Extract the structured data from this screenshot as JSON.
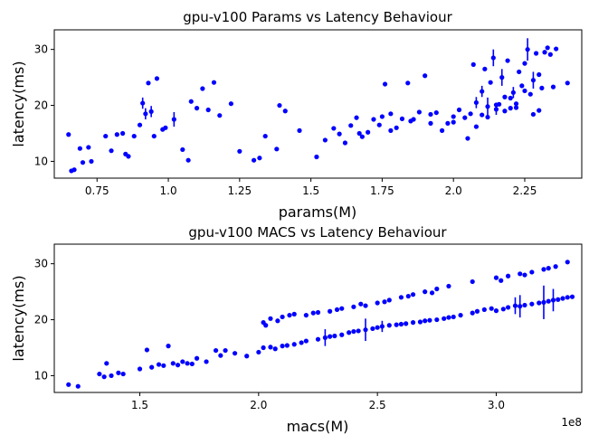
{
  "chart_data": [
    {
      "type": "scatter",
      "title": "gpu-v100 Params vs Latency Behaviour",
      "xlabel": "params(M)",
      "ylabel": "latency(ms)",
      "xlim": [
        0.6,
        2.45
      ],
      "ylim": [
        7,
        33.5
      ],
      "xticks": [
        0.75,
        1.0,
        1.25,
        1.5,
        1.75,
        2.0,
        2.25
      ],
      "xtick_labels": [
        "0.75",
        "1.0",
        "1.25",
        "1.5",
        "1.75",
        "2.0",
        "2.25"
      ],
      "yticks": [
        10,
        20,
        30
      ],
      "ytick_labels": [
        "10",
        "20",
        "30"
      ],
      "color": "#0000ff",
      "grid": false,
      "series": [
        {
          "x": [
            0.65,
            0.66,
            0.67,
            0.69,
            0.7,
            0.72,
            0.73,
            0.78,
            0.8,
            0.82,
            0.84,
            0.85,
            0.86,
            0.88,
            0.9,
            0.91,
            0.92,
            0.93,
            0.94,
            0.95,
            0.96,
            0.98,
            0.99,
            1.02,
            1.05,
            1.07,
            1.08,
            1.1,
            1.12,
            1.14,
            1.16,
            1.18,
            1.22,
            1.25,
            1.3,
            1.32,
            1.34,
            1.38,
            1.39,
            1.41,
            1.46,
            1.52,
            1.55,
            1.58,
            1.6,
            1.62,
            1.64,
            1.66,
            1.67,
            1.68,
            1.7,
            1.72,
            1.74,
            1.75,
            1.76,
            1.78,
            1.8,
            1.82,
            1.84,
            1.86,
            1.88,
            1.9,
            1.92,
            1.94,
            1.96,
            1.98,
            2.0,
            2.02,
            2.04,
            2.06,
            2.07,
            2.08,
            2.1,
            2.11,
            2.12,
            2.13,
            2.14,
            2.15,
            2.16,
            2.17,
            2.18,
            2.19,
            2.2,
            2.21,
            2.22,
            2.23,
            2.24,
            2.25,
            2.26,
            2.27,
            2.28,
            2.29,
            2.3,
            2.31,
            2.32,
            2.33,
            2.34,
            2.35,
            2.36,
            2.4,
            2.1,
            2.15,
            2.2,
            2.25,
            2.3,
            2.08,
            2.12,
            2.18,
            2.22,
            2.28,
            1.78,
            1.85,
            1.92,
            2.0,
            2.05
          ],
          "y": [
            14.8,
            8.3,
            8.5,
            12.3,
            9.8,
            12.5,
            10.0,
            14.5,
            11.9,
            14.8,
            15.0,
            11.3,
            10.9,
            14.5,
            16.5,
            20.4,
            18.5,
            24.0,
            18.9,
            14.5,
            24.8,
            15.7,
            16.0,
            17.5,
            12.1,
            10.2,
            20.7,
            19.5,
            23.0,
            19.2,
            24.1,
            18.2,
            20.3,
            11.8,
            10.2,
            10.6,
            14.5,
            12.2,
            20.0,
            19.0,
            15.5,
            10.8,
            13.8,
            15.9,
            14.9,
            13.3,
            16.4,
            17.8,
            15.0,
            14.4,
            15.2,
            17.5,
            16.5,
            18.0,
            23.8,
            18.5,
            16.0,
            17.6,
            24.0,
            17.5,
            18.8,
            25.3,
            18.4,
            18.7,
            15.5,
            16.8,
            17.0,
            19.2,
            17.8,
            18.5,
            27.3,
            20.5,
            22.5,
            26.5,
            19.8,
            24.1,
            28.5,
            19.3,
            20.2,
            25.0,
            21.5,
            28.0,
            19.5,
            22.3,
            19.6,
            26.0,
            23.5,
            27.5,
            30.0,
            22.0,
            24.5,
            29.3,
            25.5,
            23.1,
            29.5,
            30.3,
            29.1,
            23.3,
            30.1,
            24.0,
            18.3,
            20.1,
            21.3,
            22.6,
            19.1,
            16.2,
            17.9,
            19.0,
            20.3,
            18.4,
            15.5,
            17.2,
            16.8,
            18.0,
            14.1
          ],
          "err": [
            0,
            0,
            0,
            0,
            0,
            0,
            0,
            0,
            0,
            0,
            0,
            0,
            0,
            0,
            0,
            1.0,
            1.0,
            0,
            1.0,
            0,
            0,
            0,
            0,
            1.3,
            0,
            0,
            0,
            0,
            0,
            0,
            0,
            0,
            0,
            0,
            0,
            0,
            0,
            0,
            0,
            0,
            0,
            0,
            0,
            0,
            0,
            0,
            0,
            0,
            0,
            0,
            0,
            0,
            0,
            0,
            0,
            0,
            0,
            0,
            0,
            0,
            0,
            0,
            0,
            0,
            0,
            0,
            0,
            0,
            0,
            0,
            0,
            1.0,
            1.0,
            0,
            1.6,
            0,
            1.5,
            1.0,
            0,
            1.5,
            0,
            0,
            0,
            1.0,
            0,
            0,
            0,
            0,
            2.0,
            0,
            1.5,
            0,
            0,
            0,
            0,
            0,
            0,
            0,
            0,
            0,
            0,
            0,
            0,
            0,
            0,
            0,
            0,
            0,
            0,
            0,
            0,
            0,
            0,
            0,
            0
          ]
        }
      ]
    },
    {
      "type": "scatter",
      "title": "gpu-v100 MACS vs Latency Behaviour",
      "xlabel": "macs(M)",
      "ylabel": "latency(ms)",
      "offset_label": "1e8",
      "xlim": [
        1.14,
        3.36
      ],
      "ylim": [
        7,
        33.5
      ],
      "xticks": [
        1.5,
        2.0,
        2.5,
        3.0
      ],
      "xtick_labels": [
        "1.5",
        "2.0",
        "2.5",
        "3.0"
      ],
      "yticks": [
        10,
        20,
        30
      ],
      "ytick_labels": [
        "10",
        "20",
        "30"
      ],
      "color": "#0000ff",
      "grid": false,
      "series": [
        {
          "x": [
            1.2,
            1.24,
            1.33,
            1.35,
            1.36,
            1.38,
            1.41,
            1.43,
            1.5,
            1.53,
            1.55,
            1.58,
            1.6,
            1.62,
            1.64,
            1.66,
            1.68,
            1.7,
            1.72,
            1.74,
            1.78,
            1.82,
            1.84,
            1.86,
            1.9,
            1.95,
            2.0,
            2.02,
            2.05,
            2.07,
            2.1,
            2.12,
            2.15,
            2.18,
            2.2,
            2.25,
            2.28,
            2.3,
            2.32,
            2.35,
            2.38,
            2.4,
            2.42,
            2.45,
            2.48,
            2.5,
            2.52,
            2.55,
            2.58,
            2.6,
            2.62,
            2.65,
            2.68,
            2.7,
            2.72,
            2.75,
            2.78,
            2.8,
            2.82,
            2.85,
            2.9,
            2.92,
            2.95,
            2.98,
            3.0,
            3.03,
            3.05,
            3.08,
            3.1,
            3.12,
            3.15,
            3.18,
            3.2,
            3.22,
            3.24,
            3.26,
            3.28,
            3.3,
            3.32,
            2.02,
            2.05,
            2.1,
            2.15,
            2.2,
            2.25,
            2.3,
            2.35,
            2.4,
            2.45,
            2.5,
            2.55,
            2.6,
            2.65,
            2.7,
            2.75,
            2.8,
            2.9,
            3.0,
            3.05,
            3.1,
            3.15,
            3.2,
            3.25,
            3.3,
            2.03,
            2.08,
            2.13,
            2.23,
            2.33,
            2.43,
            2.53,
            2.63,
            2.73,
            3.02,
            3.12,
            3.22
          ],
          "y": [
            8.4,
            8.1,
            10.3,
            9.8,
            12.2,
            10.0,
            10.5,
            10.3,
            11.2,
            14.6,
            11.5,
            12.0,
            11.8,
            15.3,
            12.2,
            11.9,
            12.5,
            12.2,
            12.1,
            13.1,
            12.5,
            14.5,
            13.6,
            14.5,
            14.0,
            13.5,
            14.2,
            15.0,
            15.1,
            14.8,
            15.3,
            15.4,
            15.6,
            15.9,
            16.2,
            16.5,
            16.8,
            17.0,
            17.1,
            17.3,
            17.7,
            17.9,
            18.0,
            18.2,
            18.4,
            18.6,
            18.8,
            19.0,
            19.1,
            19.2,
            19.3,
            19.5,
            19.6,
            19.8,
            19.9,
            20.0,
            20.2,
            20.4,
            20.5,
            20.8,
            21.2,
            21.5,
            21.8,
            22.0,
            21.6,
            21.9,
            22.2,
            22.5,
            22.4,
            22.6,
            22.8,
            23.0,
            23.1,
            23.3,
            23.5,
            23.6,
            23.8,
            24.0,
            24.1,
            19.5,
            20.2,
            20.5,
            21.0,
            20.8,
            21.3,
            21.5,
            22.0,
            22.3,
            22.5,
            23.0,
            23.5,
            24.0,
            24.5,
            25.0,
            25.5,
            26.0,
            26.8,
            27.5,
            27.8,
            28.2,
            28.5,
            29.0,
            29.5,
            30.3,
            19.0,
            19.8,
            20.8,
            21.2,
            21.8,
            22.8,
            23.2,
            24.2,
            24.8,
            27.0,
            28.0,
            29.2
          ],
          "err": [
            0,
            0,
            0,
            0,
            0,
            0,
            0,
            0,
            0,
            0,
            0,
            0,
            0,
            0,
            0,
            0,
            0,
            0,
            0,
            0,
            0,
            0,
            0,
            0,
            0,
            0,
            0,
            0,
            0,
            0,
            0,
            0,
            0,
            0,
            0,
            0,
            1.5,
            0,
            0,
            0,
            0,
            0,
            0,
            2.0,
            0,
            0,
            1.0,
            0,
            0,
            0,
            0,
            0,
            0,
            0,
            0,
            0,
            0,
            0,
            0,
            0,
            0,
            0,
            0,
            0,
            0,
            0,
            0,
            1.5,
            2.0,
            0,
            0,
            0,
            3.0,
            0,
            2.0,
            0,
            0,
            0,
            0,
            0,
            0,
            0,
            0,
            0,
            0,
            0,
            0,
            0,
            0,
            0,
            0,
            0,
            0,
            0,
            0,
            0,
            0,
            0,
            0,
            0,
            0,
            0,
            0,
            0,
            0,
            0,
            0,
            0,
            0,
            0,
            0,
            0,
            0,
            0,
            0,
            0
          ]
        }
      ]
    }
  ]
}
